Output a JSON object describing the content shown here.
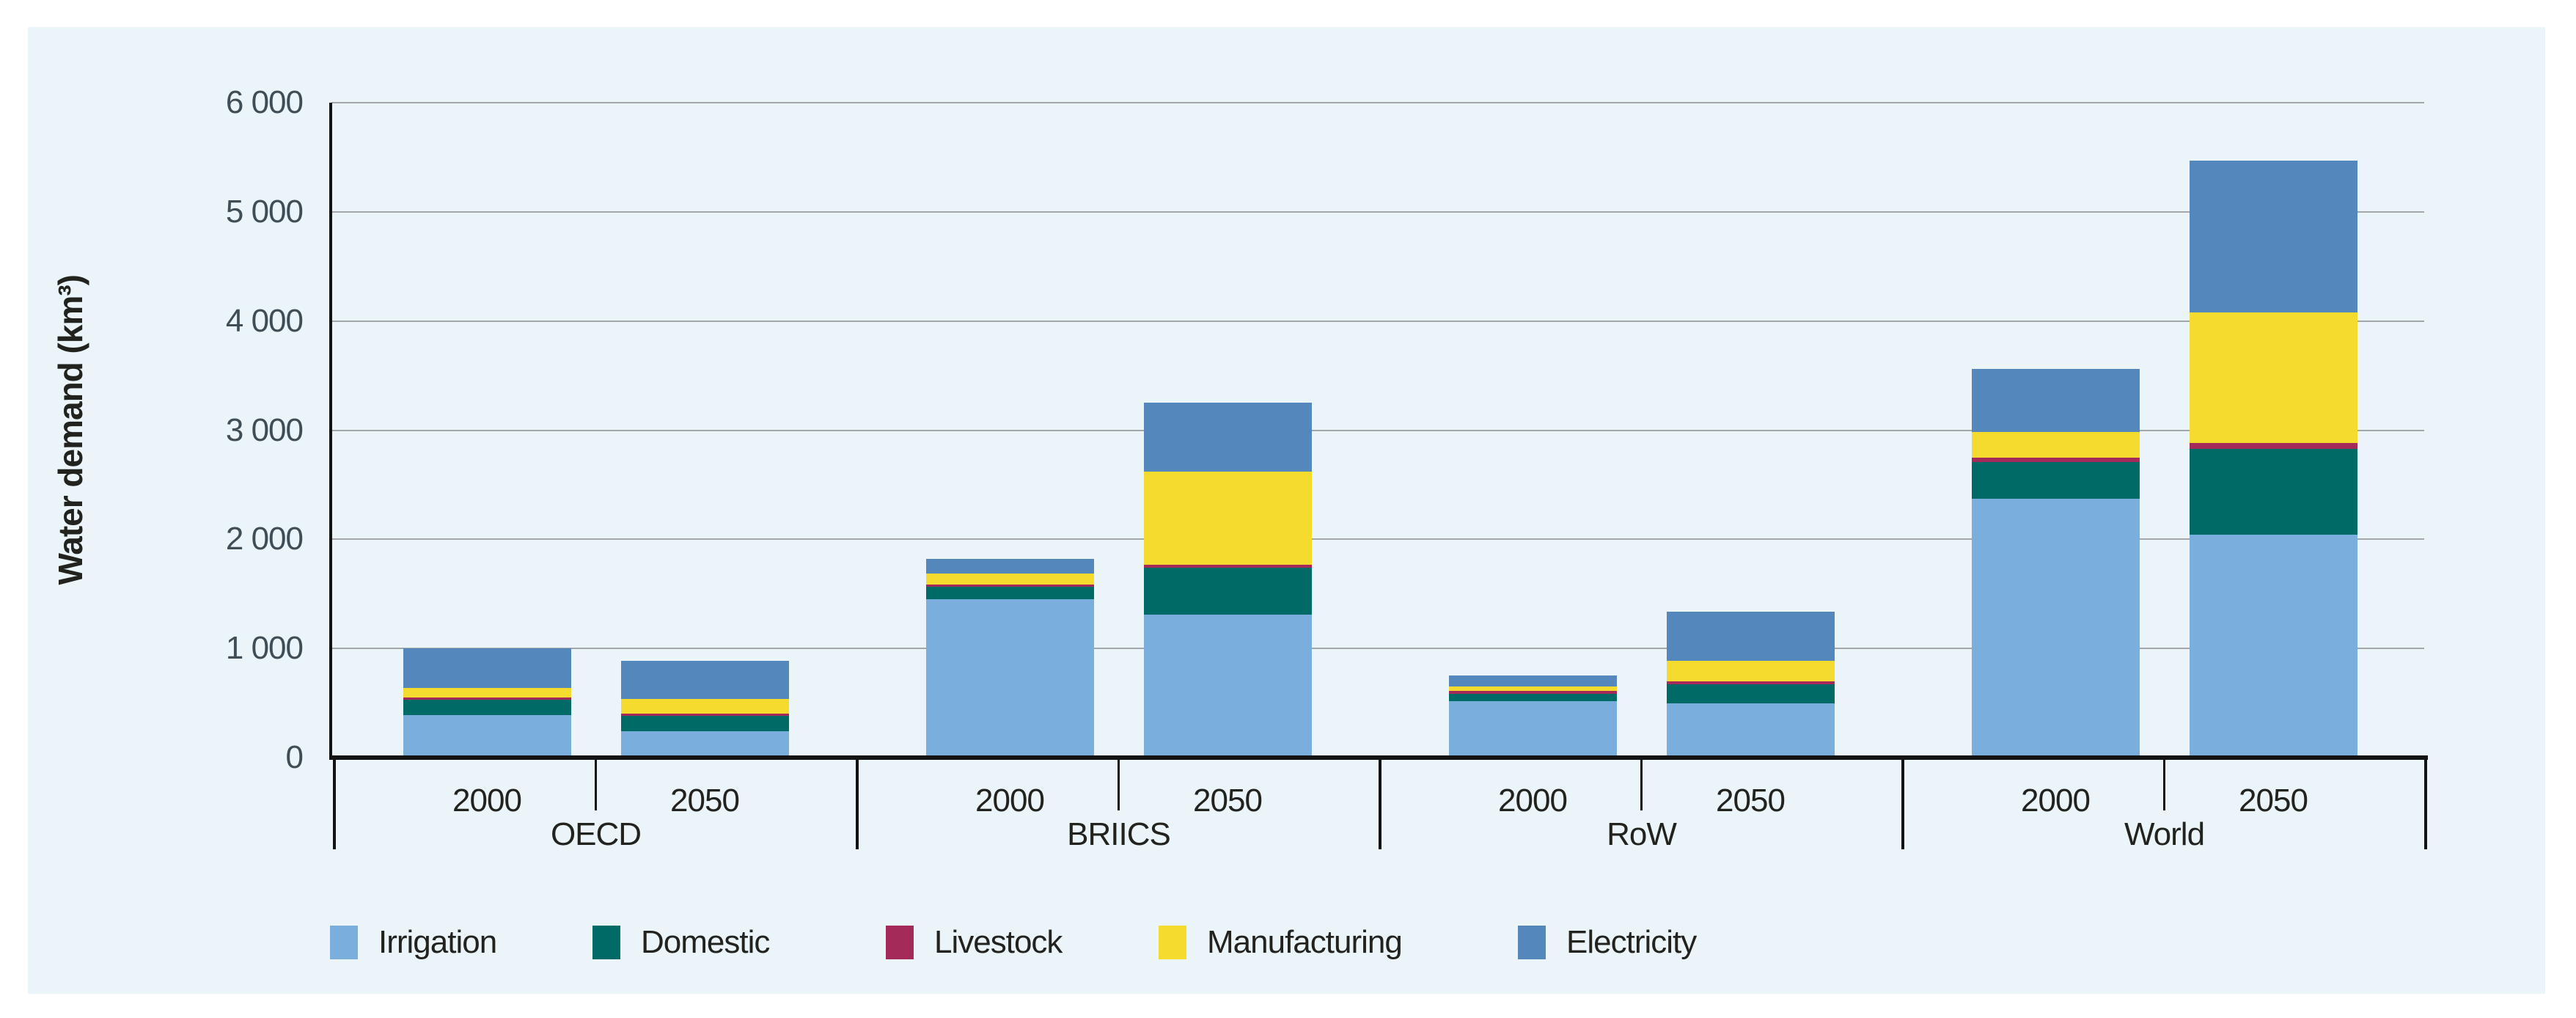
{
  "colors": {
    "panel_bg": "#EBF5F9",
    "page_bg": "#FFFFFF",
    "gridline": "#A3A7AA",
    "axis": "#131313",
    "tick_text": "#3F4D56",
    "label_text": "#22221F"
  },
  "chart_data": {
    "type": "bar",
    "stacked": true,
    "title": "",
    "ylabel": "Water demand (km³)",
    "xlabel": "",
    "unit": "km³",
    "ylim": [
      0,
      6000
    ],
    "grid": true,
    "legend_position": "bottom",
    "yticks": [
      0,
      1000,
      2000,
      3000,
      4000,
      5000,
      6000
    ],
    "ytick_labels": [
      "0",
      "1 000",
      "2 000",
      "3 000",
      "4 000",
      "5 000",
      "6 000"
    ],
    "series_stack_order_bottom_to_top": [
      "Irrigation",
      "Domestic",
      "Livestock",
      "Manufacturing",
      "Electricity"
    ],
    "series_colors": {
      "Irrigation": "#7AAEDC",
      "Domestic": "#006A66",
      "Livestock": "#A42A59",
      "Manufacturing": "#F5DB2E",
      "Electricity": "#5487BC"
    },
    "legend": [
      "Irrigation",
      "Domestic",
      "Livestock",
      "Manufacturing",
      "Electricity"
    ],
    "groups": [
      {
        "region": "OECD",
        "bars": [
          {
            "year": "2000",
            "values": {
              "Irrigation": 390,
              "Domestic": 140,
              "Livestock": 20,
              "Manufacturing": 90,
              "Electricity": 360
            },
            "total": 1000
          },
          {
            "year": "2050",
            "values": {
              "Irrigation": 240,
              "Domestic": 145,
              "Livestock": 15,
              "Manufacturing": 140,
              "Electricity": 350
            },
            "total": 890
          }
        ]
      },
      {
        "region": "BRIICS",
        "bars": [
          {
            "year": "2000",
            "values": {
              "Irrigation": 1450,
              "Domestic": 115,
              "Livestock": 20,
              "Manufacturing": 100,
              "Electricity": 135
            },
            "total": 1820
          },
          {
            "year": "2050",
            "values": {
              "Irrigation": 1310,
              "Domestic": 430,
              "Livestock": 30,
              "Manufacturing": 850,
              "Electricity": 630
            },
            "total": 3250
          }
        ]
      },
      {
        "region": "RoW",
        "bars": [
          {
            "year": "2000",
            "values": {
              "Irrigation": 515,
              "Domestic": 70,
              "Livestock": 25,
              "Manufacturing": 40,
              "Electricity": 100
            },
            "total": 750
          },
          {
            "year": "2050",
            "values": {
              "Irrigation": 500,
              "Domestic": 170,
              "Livestock": 30,
              "Manufacturing": 185,
              "Electricity": 455
            },
            "total": 1340
          }
        ]
      },
      {
        "region": "World",
        "bars": [
          {
            "year": "2000",
            "values": {
              "Irrigation": 2370,
              "Domestic": 340,
              "Livestock": 40,
              "Manufacturing": 235,
              "Electricity": 575
            },
            "total": 3560
          },
          {
            "year": "2050",
            "values": {
              "Irrigation": 2040,
              "Domestic": 790,
              "Livestock": 55,
              "Manufacturing": 1190,
              "Electricity": 1395
            },
            "total": 5470
          }
        ]
      }
    ]
  }
}
